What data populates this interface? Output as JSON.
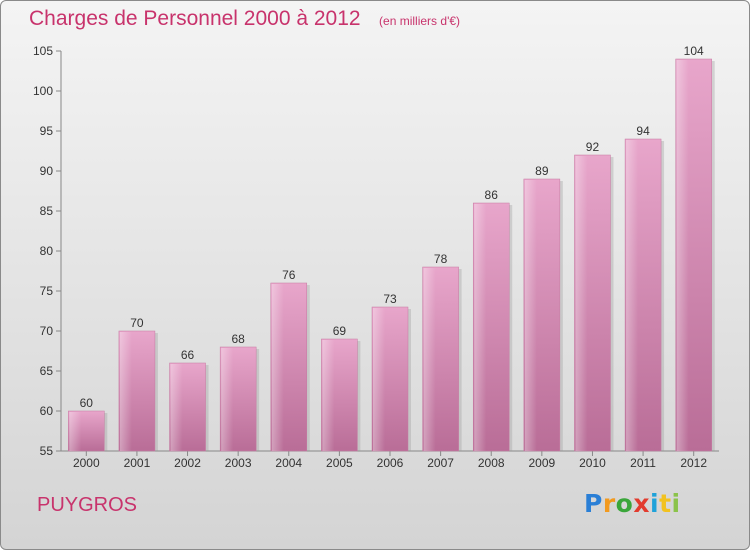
{
  "chart_data": {
    "type": "bar",
    "title": "Charges de Personnel 2000 à 2012",
    "subtitle": "(en milliers d'€)",
    "categories": [
      "2000",
      "2001",
      "2002",
      "2003",
      "2004",
      "2005",
      "2006",
      "2007",
      "2008",
      "2009",
      "2010",
      "2011",
      "2012"
    ],
    "values": [
      60,
      70,
      66,
      68,
      76,
      69,
      73,
      78,
      86,
      89,
      92,
      94,
      104
    ],
    "xlabel": "",
    "ylabel": "",
    "ylim": [
      55,
      105
    ],
    "yticks": [
      55,
      60,
      65,
      70,
      75,
      80,
      85,
      90,
      95,
      100,
      105
    ],
    "grid": false,
    "bar_color": "#d77aaa"
  },
  "footer": {
    "city": "PUYGROS",
    "logo_letters": [
      "P",
      "r",
      "o",
      "x",
      "i",
      "t",
      "i"
    ],
    "logo_colors": [
      "#2a7fd6",
      "#f29a1f",
      "#3aa63a",
      "#e23b2e",
      "#1fa2d9",
      "#f2c21f",
      "#8bc34a"
    ]
  }
}
